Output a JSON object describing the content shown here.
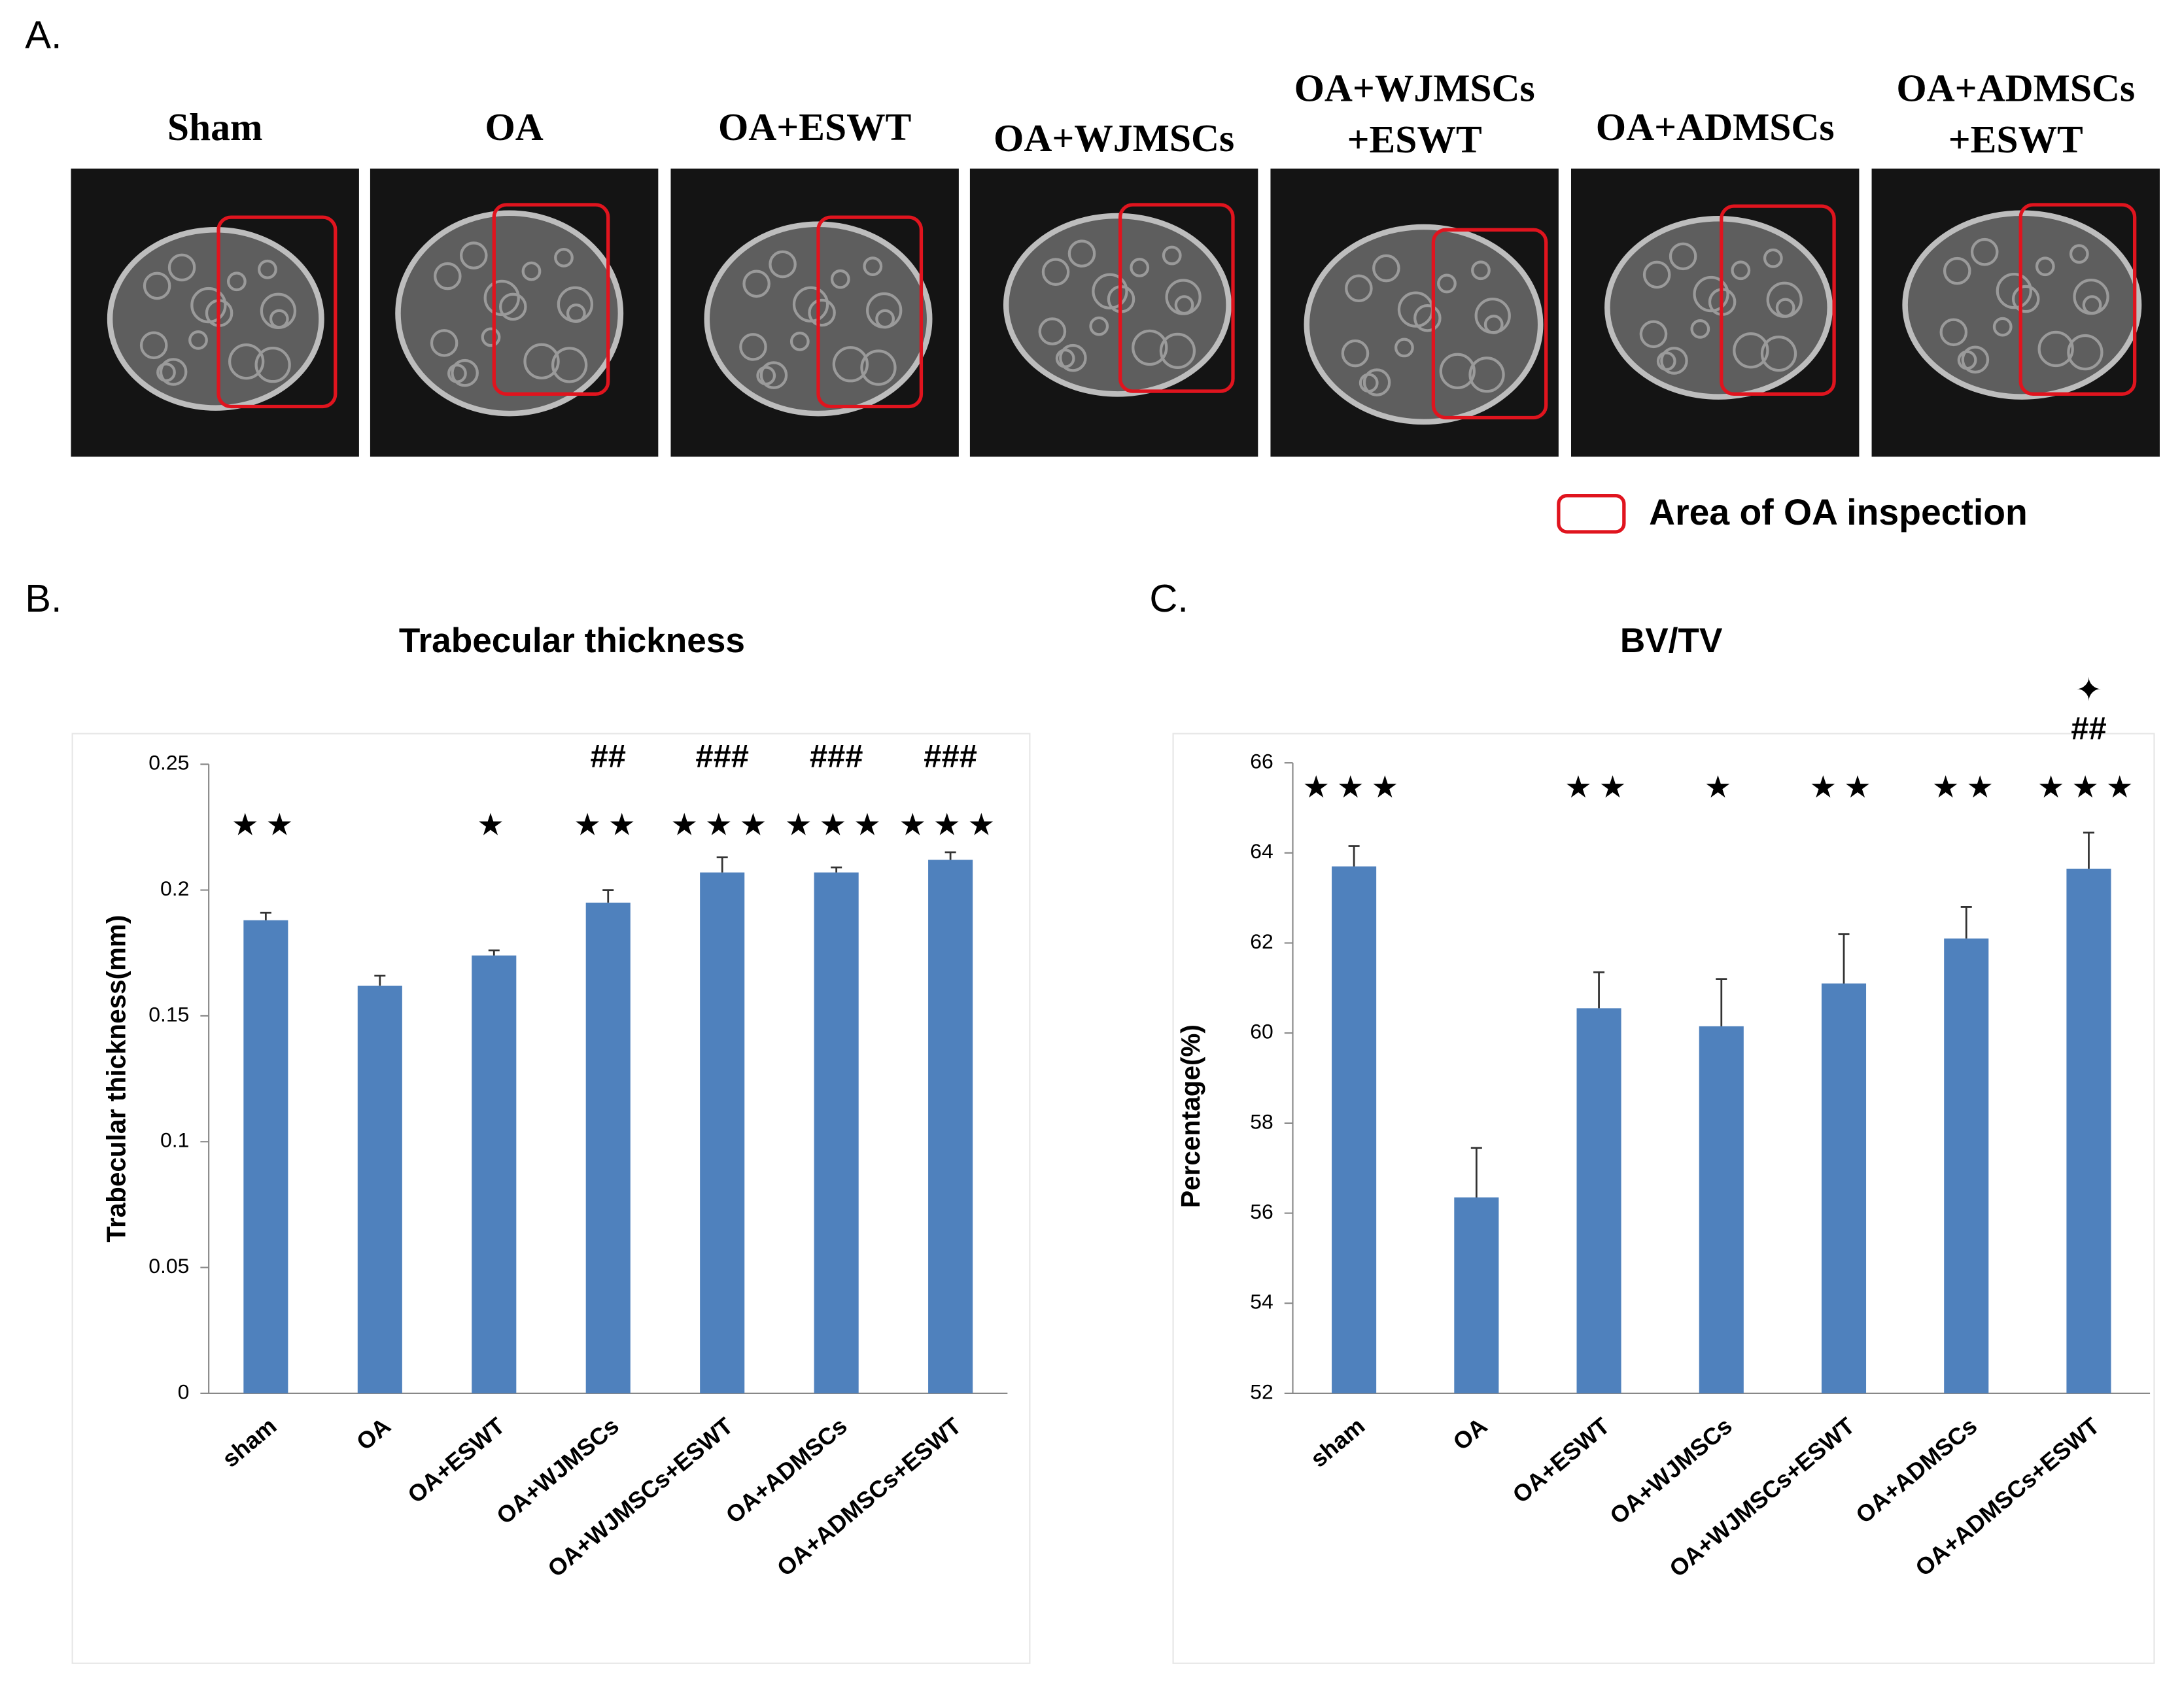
{
  "panel_a": {
    "label": "A.",
    "images": [
      [
        "Sham"
      ],
      [
        "OA"
      ],
      [
        "OA+ESWT"
      ],
      [
        "OA+WJMSCs"
      ],
      [
        "OA+WJMSCs",
        "+ESWT"
      ],
      [
        "OA+ADMSCs"
      ],
      [
        "OA+ADMSCs",
        "+ESWT"
      ]
    ],
    "legend": "Area of  OA inspection"
  },
  "chart_data": [
    {
      "type": "bar",
      "panel_label": "B.",
      "title": "Trabecular thickness",
      "y_label": "Trabecular thickness(mm)",
      "categories": [
        "sham",
        "OA",
        "OA+ESWT",
        "OA+WJMSCs",
        "OA+WJMSCs+ESWT",
        "OA+ADMSCs",
        "OA+ADMSCs+ESWT"
      ],
      "values": [
        0.188,
        0.162,
        0.174,
        0.195,
        0.207,
        0.207,
        0.212
      ],
      "errors": [
        0.003,
        0.004,
        0.002,
        0.005,
        0.006,
        0.002,
        0.003
      ],
      "stars": [
        "★★",
        null,
        "★",
        "★★",
        "★★★",
        "★★★",
        "★★★"
      ],
      "hashes": [
        null,
        null,
        null,
        "##",
        "###",
        "###",
        "###"
      ],
      "color": "#4f81bd",
      "ylim": [
        0,
        0.25
      ],
      "yticks": [
        0,
        0.05,
        0.1,
        0.15,
        0.2,
        0.25
      ]
    },
    {
      "type": "bar",
      "panel_label": "C.",
      "title": "BV/TV",
      "y_label": "Percentage(%)",
      "categories": [
        "sham",
        "OA",
        "OA+ESWT",
        "OA+WJMSCs",
        "OA+WJMSCs+ESWT",
        "OA+ADMSCs",
        "OA+ADMSCs+ESWT"
      ],
      "values": [
        63.7,
        56.35,
        60.55,
        60.15,
        61.1,
        62.1,
        63.65
      ],
      "errors": [
        0.45,
        1.1,
        0.8,
        1.05,
        1.1,
        0.7,
        0.8
      ],
      "stars": [
        "★★★",
        null,
        "★★",
        "★",
        "★★",
        "★★",
        "★★★"
      ],
      "hashes": [
        null,
        null,
        null,
        null,
        null,
        null,
        "##"
      ],
      "diamonds": [
        null,
        null,
        null,
        null,
        null,
        null,
        "✦"
      ],
      "color": "#4f81bd",
      "ylim": [
        52,
        66
      ],
      "yticks": [
        52,
        54,
        56,
        58,
        60,
        62,
        64,
        66
      ]
    }
  ]
}
